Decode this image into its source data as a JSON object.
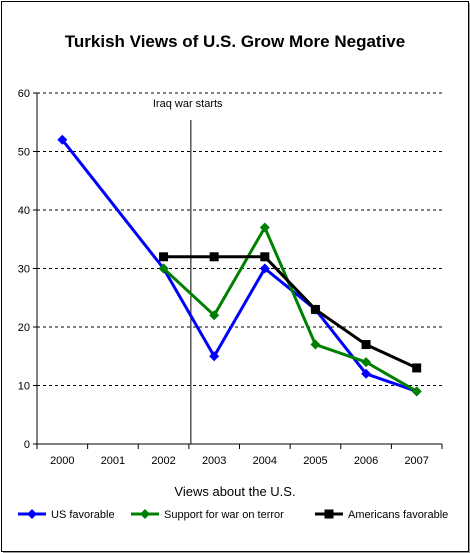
{
  "chart_data": {
    "type": "line",
    "title": "Turkish Views of U.S. Grow More Negative",
    "xlabel": "Views about the U.S.",
    "ylabel": "",
    "categories": [
      "2000",
      "2001",
      "2002",
      "2003",
      "2004",
      "2005",
      "2006",
      "2007"
    ],
    "ylim": [
      0,
      60
    ],
    "yticks": [
      "0",
      "10",
      "20",
      "30",
      "40",
      "50",
      "60"
    ],
    "grid": "horizontal dashed",
    "legend_position": "bottom",
    "annotation": {
      "label": "Iraq war starts",
      "at_category": "2003"
    },
    "series": [
      {
        "name": "US favorable",
        "color": "#0000ff",
        "values": [
          52,
          null,
          30,
          15,
          30,
          23,
          12,
          9
        ]
      },
      {
        "name": "Support for war on terror",
        "color": "#008000",
        "values": [
          null,
          null,
          30,
          22,
          37,
          17,
          14,
          9
        ]
      },
      {
        "name": "Americans favorable",
        "color": "#000000",
        "values": [
          null,
          null,
          32,
          32,
          32,
          23,
          17,
          13
        ]
      }
    ]
  }
}
